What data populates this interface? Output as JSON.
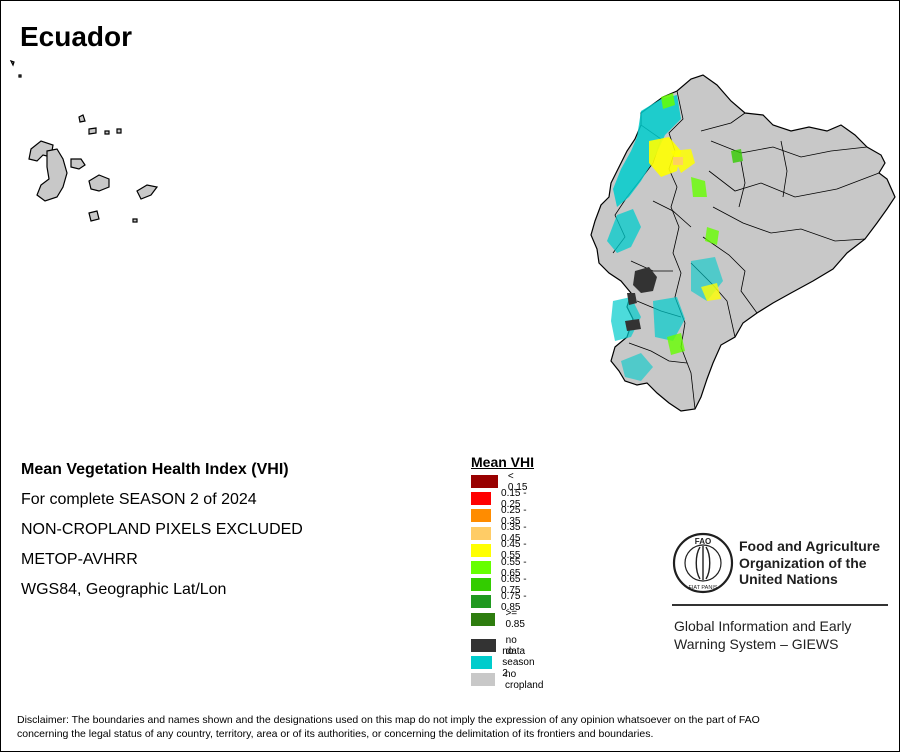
{
  "title": "Ecuador",
  "info": {
    "heading": "Mean Vegetation Health Index (VHI)",
    "season": "For complete SEASON 2 of 2024",
    "exclusion": "NON-CROPLAND PIXELS EXCLUDED",
    "sensor": "METOP-AVHRR",
    "projection": "WGS84, Geographic Lat/Lon"
  },
  "legend": {
    "title": "Mean VHI",
    "classes": [
      {
        "label": "< 0.15",
        "color": "#990000"
      },
      {
        "label": "0.15 - 0.25",
        "color": "#ff0000"
      },
      {
        "label": "0.25 - 0.35",
        "color": "#ff8c00"
      },
      {
        "label": "0.35 - 0.45",
        "color": "#ffcc66"
      },
      {
        "label": "0.45 - 0.55",
        "color": "#ffff00"
      },
      {
        "label": "0.55 - 0.65",
        "color": "#66ff00"
      },
      {
        "label": "0.65 - 0.75",
        "color": "#33cc00"
      },
      {
        "label": "0.75 - 0.85",
        "color": "#209920"
      },
      {
        "label": ">= 0.85",
        "color": "#2e7d0f"
      }
    ],
    "extra": [
      {
        "label": "no data",
        "color": "#333333"
      },
      {
        "label": "no season 2",
        "color": "#00cccc"
      },
      {
        "label": "no cropland",
        "color": "#c8c8c8"
      }
    ]
  },
  "fao": {
    "name_line1": "Food and Agriculture",
    "name_line2": "Organization of the",
    "name_line3": "United Nations",
    "emblem_text": "FAO",
    "emblem_motto": "FIAT PANIS",
    "giews_line1": "Global Information and Early",
    "giews_line2": "Warning System – GIEWS"
  },
  "disclaimer": {
    "line1": "Disclaimer: The boundaries and names shown and the designations used on this map do not imply the expression of any opinion whatsoever on the part of FAO",
    "line2": "concerning the legal status of any country, territory, area or of its authorities, or concerning the delimitation of its frontiers and boundaries."
  },
  "colors": {
    "land": "#c8c8c8",
    "boundary": "#000000",
    "season2": "#00cccc",
    "vhi_mid": "#ffff00",
    "vhi_good": "#66ff00"
  }
}
